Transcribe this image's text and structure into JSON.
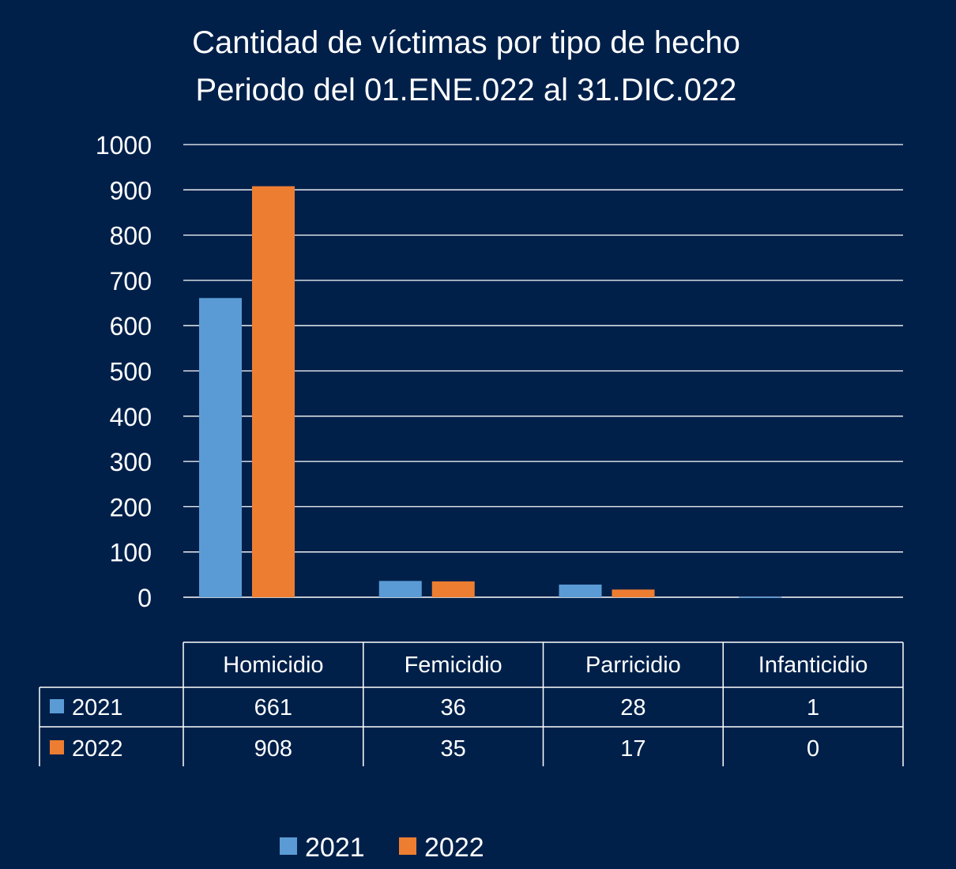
{
  "chart_data": {
    "type": "bar",
    "title": "Cantidad de víctimas por tipo de hecho",
    "subtitle": "Periodo del 01.ENE.022 al 31.DIC.022",
    "categories": [
      "Homicidio",
      "Femicidio",
      "Parricidio",
      "Infanticidio"
    ],
    "series": [
      {
        "name": "2021",
        "values": [
          661,
          36,
          28,
          1
        ],
        "color": "#5b9bd5"
      },
      {
        "name": "2022",
        "values": [
          908,
          35,
          17,
          0
        ],
        "color": "#ed7d31"
      }
    ],
    "yticks": [
      "1000",
      "900",
      "800",
      "700",
      "600",
      "500",
      "400",
      "300",
      "200",
      "100",
      "0"
    ],
    "ylim": [
      0,
      1000
    ],
    "grid": true,
    "legend_position": "bottom",
    "data_table": true
  }
}
